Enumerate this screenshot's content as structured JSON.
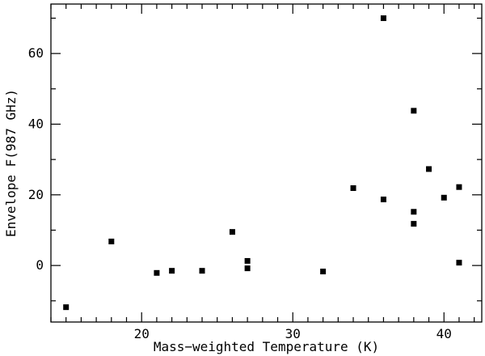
{
  "chart_data": {
    "type": "scatter",
    "title": "",
    "xlabel": "Mass−weighted Temperature (K)",
    "ylabel": "Envelope F(987 GHz)",
    "xlim": [
      14,
      42.5
    ],
    "ylim": [
      -16,
      74
    ],
    "x_major_ticks": [
      20,
      30,
      40
    ],
    "x_minor_step": 1,
    "y_major_ticks": [
      0,
      20,
      40,
      60
    ],
    "y_minor_step": 10,
    "grid": false,
    "marker": "square",
    "marker_color": "#000000",
    "series": [
      {
        "points": [
          {
            "x": 15,
            "y": -11.8
          },
          {
            "x": 18,
            "y": 6.8
          },
          {
            "x": 21,
            "y": -2.1
          },
          {
            "x": 22,
            "y": -1.5
          },
          {
            "x": 24,
            "y": -1.5
          },
          {
            "x": 26,
            "y": 9.5
          },
          {
            "x": 27,
            "y": 1.3
          },
          {
            "x": 27,
            "y": -0.8
          },
          {
            "x": 32,
            "y": -1.7
          },
          {
            "x": 34,
            "y": 21.9
          },
          {
            "x": 36,
            "y": 70.0
          },
          {
            "x": 36,
            "y": 18.7
          },
          {
            "x": 38,
            "y": 43.8
          },
          {
            "x": 38,
            "y": 15.2
          },
          {
            "x": 38,
            "y": 11.8
          },
          {
            "x": 39,
            "y": 27.3
          },
          {
            "x": 40,
            "y": 19.2
          },
          {
            "x": 41,
            "y": 22.2
          },
          {
            "x": 41,
            "y": 0.8
          }
        ]
      }
    ]
  }
}
